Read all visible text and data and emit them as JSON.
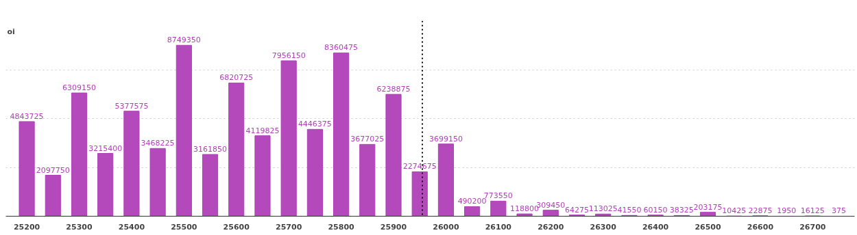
{
  "chart_data": {
    "type": "bar",
    "ylabel": "oi",
    "x": [
      25200,
      25250,
      25300,
      25350,
      25400,
      25450,
      25500,
      25550,
      25600,
      25650,
      25700,
      25750,
      25800,
      25850,
      25900,
      25950,
      26000,
      26050,
      26100,
      26150,
      26200,
      26250,
      26300,
      26350,
      26400,
      26450,
      26500,
      26550,
      26600,
      26650,
      26700,
      26750
    ],
    "values": [
      4843725,
      2097750,
      6309150,
      3215400,
      5377575,
      3468225,
      8749350,
      3161850,
      6820725,
      4119825,
      7956150,
      4446375,
      8360475,
      3677025,
      6238875,
      2274675,
      3699150,
      490200,
      773550,
      118800,
      309450,
      64275,
      113025,
      41550,
      60150,
      38325,
      203175,
      10425,
      22875,
      1950,
      16125,
      375
    ],
    "color": "#b03fb8",
    "data_labels": true,
    "xlim": [
      25160,
      26780
    ],
    "xticks": [
      25200,
      25300,
      25400,
      25500,
      25600,
      25700,
      25800,
      25900,
      26000,
      26100,
      26200,
      26300,
      26400,
      26500,
      26600,
      26700
    ],
    "ylim": [
      0,
      10000000
    ],
    "yticks": [
      {
        "value": 0,
        "label": null
      },
      {
        "value": 2500000,
        "label": null
      },
      {
        "value": 5000000,
        "label": null
      },
      {
        "value": 7500000,
        "label": null
      }
    ],
    "tick_labels": "x",
    "grid": "y",
    "ref_lines": [
      {
        "axis": "x",
        "value": 25955,
        "label": null,
        "color": "#000000",
        "line_style": "dotted"
      }
    ]
  }
}
